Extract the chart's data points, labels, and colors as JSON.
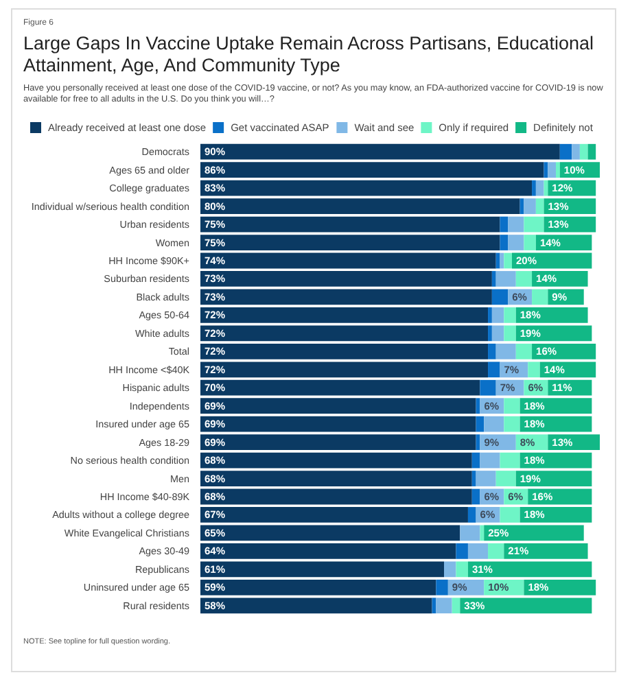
{
  "chart_data": {
    "type": "bar",
    "orientation": "horizontal",
    "stacked": true,
    "title": "Large Gaps In Vaccine Uptake Remain Across Partisans, Educational Attainment, Age, And Community Type",
    "subtitle": "Have you personally received at least one dose of the COVID-19 vaccine, or not? As you may know, an FDA-authorized vaccine for COVID-19 is now available for free to all adults in the U.S. Do you think you will…?",
    "annotations": [
      "Figure 6",
      "NOTE: See topline for full question wording."
    ],
    "categories": [
      "Democrats",
      "Ages 65 and older",
      "College graduates",
      "Individual w/serious health condition",
      "Urban residents",
      "Women",
      "HH Income $90K+",
      "Suburban residents",
      "Black adults",
      "Ages 50-64",
      "White adults",
      "Total",
      "HH Income <$40K",
      "Hispanic adults",
      "Independents",
      "Insured under age 65",
      "Ages 18-29",
      "No serious health condition",
      "Men",
      "HH Income $40-89K",
      "Adults without a college degree",
      "White Evangelical Christians",
      "Ages 30-49",
      "Republicans",
      "Uninsured under age 65",
      "Rural residents"
    ],
    "series": [
      {
        "name": "Already received at least one dose",
        "color": "#0b3a63",
        "values": [
          90,
          86,
          83,
          80,
          75,
          75,
          74,
          73,
          73,
          72,
          72,
          72,
          72,
          70,
          69,
          69,
          69,
          68,
          68,
          68,
          67,
          65,
          64,
          61,
          59,
          58
        ],
        "value_labels": [
          "90%",
          "86%",
          "83%",
          "80%",
          "75%",
          "75%",
          "74%",
          "73%",
          "73%",
          "72%",
          "72%",
          "72%",
          "72%",
          "70%",
          "69%",
          "69%",
          "69%",
          "68%",
          "68%",
          "68%",
          "67%",
          "65%",
          "64%",
          "61%",
          "59%",
          "58%"
        ]
      },
      {
        "name": "Get vaccinated ASAP",
        "color": "#0a70c8",
        "values": [
          3,
          1,
          1,
          1,
          2,
          2,
          1,
          1,
          4,
          1,
          1,
          2,
          3,
          4,
          1,
          2,
          1,
          2,
          1,
          2,
          2,
          0,
          3,
          0,
          3,
          1
        ],
        "value_labels": [
          null,
          null,
          null,
          null,
          null,
          null,
          null,
          null,
          null,
          null,
          null,
          null,
          null,
          null,
          null,
          null,
          null,
          null,
          null,
          null,
          null,
          null,
          null,
          null,
          null,
          null
        ]
      },
      {
        "name": "Wait and see",
        "color": "#80b8e6",
        "values": [
          2,
          2,
          2,
          3,
          4,
          4,
          1,
          5,
          6,
          3,
          3,
          5,
          7,
          7,
          6,
          5,
          9,
          5,
          5,
          6,
          6,
          5,
          5,
          3,
          9,
          4
        ],
        "value_labels": [
          null,
          null,
          null,
          null,
          null,
          null,
          null,
          null,
          "6%",
          null,
          null,
          null,
          "7%",
          "7%",
          "6%",
          null,
          "9%",
          null,
          null,
          "6%",
          "6%",
          null,
          null,
          null,
          "9%",
          null
        ]
      },
      {
        "name": "Only if required",
        "color": "#6ef5c6",
        "values": [
          2,
          1,
          1,
          2,
          5,
          3,
          2,
          4,
          4,
          3,
          3,
          4,
          3,
          6,
          4,
          4,
          8,
          5,
          5,
          6,
          5,
          1,
          4,
          3,
          10,
          2
        ],
        "value_labels": [
          null,
          null,
          null,
          null,
          null,
          null,
          null,
          null,
          null,
          null,
          null,
          null,
          null,
          "6%",
          null,
          null,
          "8%",
          null,
          null,
          "6%",
          null,
          null,
          null,
          null,
          "10%",
          null
        ]
      },
      {
        "name": "Definitely not",
        "color": "#12b886",
        "values": [
          2,
          10,
          12,
          13,
          13,
          14,
          20,
          14,
          9,
          18,
          19,
          16,
          14,
          11,
          18,
          18,
          13,
          18,
          19,
          16,
          18,
          25,
          21,
          31,
          18,
          33
        ],
        "value_labels": [
          null,
          "10%",
          "12%",
          "13%",
          "13%",
          "14%",
          "20%",
          "14%",
          "9%",
          "18%",
          "19%",
          "16%",
          "14%",
          "11%",
          "18%",
          "18%",
          "13%",
          "18%",
          "19%",
          "16%",
          "18%",
          "25%",
          "21%",
          "31%",
          "18%",
          "33%"
        ]
      }
    ],
    "xlim": [
      0,
      100
    ],
    "tick_labels": "y",
    "legend": "top left"
  }
}
